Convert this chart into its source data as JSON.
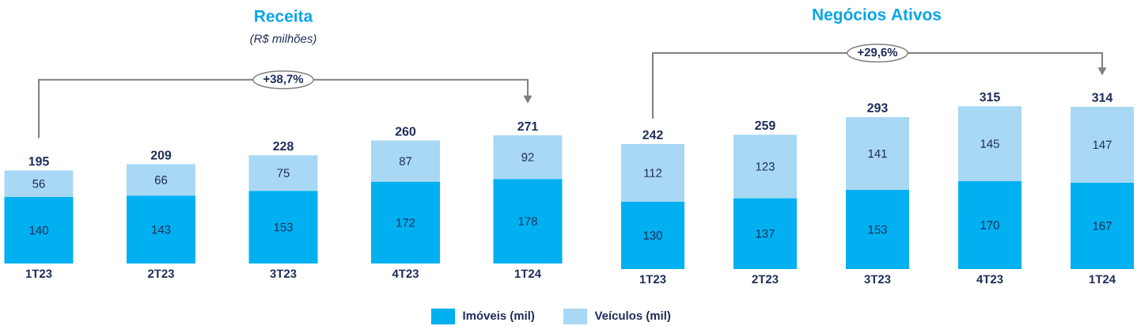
{
  "chart_data": [
    {
      "type": "bar",
      "stacked": true,
      "title": "Receita",
      "subtitle": "(R$ milhões)",
      "categories": [
        "1T23",
        "2T23",
        "3T23",
        "4T23",
        "1T24"
      ],
      "series": [
        {
          "name": "Imóveis (mil)",
          "color": "#00b0f0",
          "values": [
            140,
            143,
            153,
            172,
            178
          ]
        },
        {
          "name": "Veículos (mil)",
          "color": "#a9d8f5",
          "values": [
            56,
            66,
            75,
            87,
            92
          ]
        }
      ],
      "totals": [
        "195",
        "209",
        "228",
        "260",
        "271"
      ],
      "data_labels": true,
      "annotations": [
        "+38,7%"
      ],
      "legend": "bottom"
    },
    {
      "type": "bar",
      "stacked": true,
      "title": "Negócios Ativos",
      "categories": [
        "1T23",
        "2T23",
        "3T23",
        "4T23",
        "1T24"
      ],
      "series": [
        {
          "color": "#00b0f0",
          "values": [
            130,
            137,
            153,
            170,
            167
          ]
        },
        {
          "color": "#a9d8f5",
          "values": [
            112,
            123,
            141,
            145,
            147
          ]
        }
      ],
      "totals": [
        "242",
        "259",
        "293",
        "315",
        "314"
      ],
      "data_labels": true,
      "annotations": [
        "+29,6%"
      ]
    }
  ]
}
